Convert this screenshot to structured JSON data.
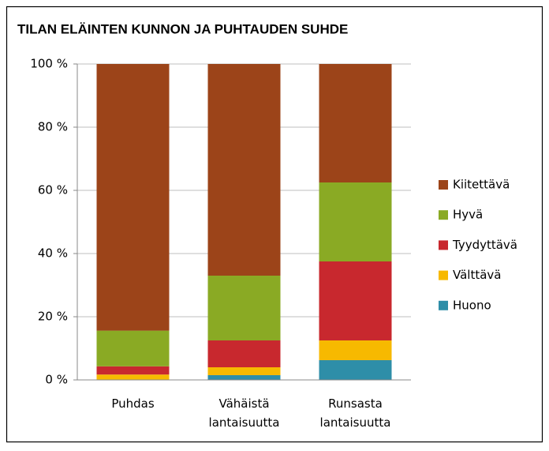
{
  "chart_data": {
    "type": "stacked_bar",
    "title": "TILAN ELÄINTEN KUNNON JA PUHTAUDEN SUHDE",
    "categories": [
      "Puhdas",
      "Vähäistä lantaisuutta",
      "Runsasta lantaisuutta"
    ],
    "series": [
      {
        "name": "Huono",
        "color": "#2e8ea8",
        "values": [
          0,
          1.5,
          6.25
        ]
      },
      {
        "name": "Välttävä",
        "color": "#f7b900",
        "values": [
          1.7,
          2.5,
          6.25
        ]
      },
      {
        "name": "Tyydyttävä",
        "color": "#c8282e",
        "values": [
          2.6,
          8.5,
          25
        ]
      },
      {
        "name": "Hyvä",
        "color": "#8aaa24",
        "values": [
          11.3,
          20.5,
          25
        ]
      },
      {
        "name": "Kiitettävä",
        "color": "#9c4419",
        "values": [
          84.4,
          67,
          37.5
        ]
      }
    ],
    "ylim": [
      0,
      100
    ],
    "yticks": [
      {
        "value": 0,
        "label": "0 %"
      },
      {
        "value": 20,
        "label": "20 %"
      },
      {
        "value": 40,
        "label": "40 %"
      },
      {
        "value": 60,
        "label": "60 %"
      },
      {
        "value": 80,
        "label": "80 %"
      },
      {
        "value": 100,
        "label": "100 %"
      }
    ],
    "grid": true,
    "legend": "right"
  }
}
